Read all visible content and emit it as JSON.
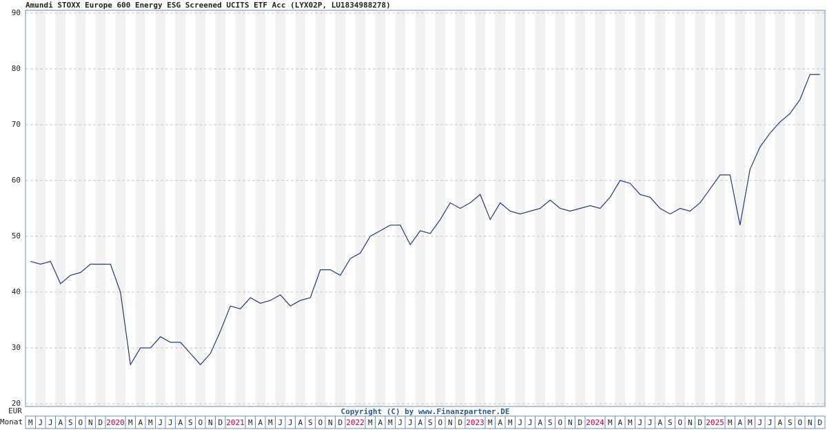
{
  "chart_data": {
    "type": "line",
    "title": "Amundi STOXX Europe 600 Energy ESG Screened UCITS ETF Acc (LYX02P, LU1834988278)",
    "y_unit_label": "EUR",
    "x_axis_label": "Monat",
    "annotation": "Copyright (C) by www.Finanzpartner.DE",
    "categories": [
      "M",
      "J",
      "J",
      "A",
      "S",
      "O",
      "N",
      "D",
      "2020",
      null,
      "M",
      "A",
      "M",
      "J",
      "J",
      "A",
      "S",
      "O",
      "N",
      "D",
      "2021",
      null,
      "M",
      "A",
      "M",
      "J",
      "J",
      "A",
      "S",
      "O",
      "N",
      "D",
      "2022",
      null,
      "M",
      "A",
      "M",
      "J",
      "J",
      "A",
      "S",
      "O",
      "N",
      "D",
      "2023",
      null,
      "M",
      "A",
      "M",
      "J",
      "J",
      "A",
      "S",
      "O",
      "N",
      "D",
      "2024",
      null,
      "M",
      "A",
      "M",
      "J",
      "J",
      "A",
      "S",
      "O",
      "N",
      "D",
      "2025",
      null,
      "M",
      "A",
      "M",
      "J",
      "J",
      "A",
      "S",
      "O",
      "N",
      "D"
    ],
    "series": [
      {
        "name": "LYX02P",
        "color": "#1f3a7a",
        "values": [
          45.5,
          45,
          45.5,
          41.5,
          43,
          43.5,
          45,
          45,
          45,
          40,
          27,
          30,
          30,
          32,
          31,
          31,
          29,
          27,
          29,
          33,
          37.5,
          37,
          39,
          38,
          38.5,
          39.5,
          37.5,
          38.5,
          39,
          44,
          44,
          43,
          46,
          47,
          50,
          51,
          52,
          52,
          48.5,
          51,
          50.5,
          53,
          56,
          55,
          56,
          57.5,
          53,
          56,
          54.5,
          54,
          54.5,
          55,
          56.5,
          55,
          54.5,
          55,
          55.5,
          55,
          57,
          60,
          59.5,
          57.5,
          57,
          55,
          54,
          55,
          54.5,
          56,
          58.5,
          61,
          61,
          52,
          62,
          66,
          68.5,
          70.5,
          72,
          74.5,
          79,
          79
        ]
      }
    ],
    "ylim": [
      19.5,
      90.5
    ],
    "yticks": [
      20,
      30,
      40,
      50,
      60,
      70,
      80,
      90
    ],
    "grid": true,
    "stripe_color": "#f2f2f2",
    "year_label_color": "#c0003c"
  }
}
